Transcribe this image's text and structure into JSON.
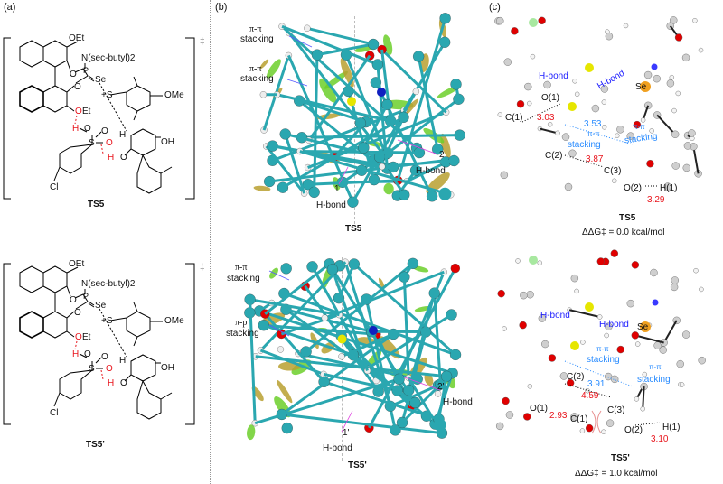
{
  "panels": {
    "a": {
      "label": "(a)",
      "ts_top": {
        "name": "TS5",
        "dagger": "‡",
        "atoms": {
          "oet_top": "OEt",
          "amine": "N(sec-butyl)2",
          "p": "P",
          "se": "Se",
          "o1": "O",
          "o2": "O",
          "s_plus": "+S",
          "ome": "OMe",
          "oet_bottom_o": "O",
          "oet_bottom_et": "Et",
          "h1": "H",
          "o3": "O",
          "s": "S",
          "so1": "O",
          "so2": "O",
          "h2": "H",
          "o4": "O",
          "h_ch": "H",
          "oh": "OH",
          "cl": "Cl"
        }
      },
      "ts_bottom": {
        "name": "TS5'",
        "dagger": "‡",
        "atoms": {
          "oet_top": "OEt",
          "amine": "N(sec-butyl)2",
          "p": "P",
          "se": "Se",
          "o1": "O",
          "o2": "O",
          "s_plus": "+S",
          "ome": "OMe",
          "oet_bottom_o": "O",
          "oet_bottom_et": "Et",
          "h1": "H",
          "o3": "O",
          "s": "S",
          "so1": "O",
          "so2": "O",
          "h2": "H",
          "o4": "O",
          "h_ch": "H",
          "oh": "OH",
          "cl": "Cl"
        }
      }
    },
    "b": {
      "label": "(b)",
      "top": {
        "name": "TS5",
        "stack1": "π-π\nstacking",
        "stack1_a": "π-π",
        "stack1_b": "stacking",
        "stack2_a": "π-π",
        "stack2_b": "stacking",
        "hb1_num": "1",
        "hb1_label": "H-bond",
        "hb2_num": "2",
        "hb2_label": "H-bond"
      },
      "bottom": {
        "name": "TS5'",
        "stack1_a": "π-π",
        "stack1_b": "stacking",
        "stack2_a": "π-p",
        "stack2_b": "stacking",
        "hb1_num": "1'",
        "hb1_label": "H-bond",
        "hb2_num": "2'",
        "hb2_label": "H-bond"
      }
    },
    "c": {
      "label": "(c)",
      "top": {
        "name": "TS5",
        "energy": "ΔΔG‡ = 0.0 kcal/mol",
        "hbond1": "H-bond",
        "hbond2": "H-bond",
        "se": "Se",
        "o1": "O(1)",
        "c1": "C(1)",
        "d_c1_o1": "3.03",
        "d_stack": "3.53",
        "pp1_a": "π-π",
        "pp1_b": "stacking",
        "pp2_a": "π-π",
        "pp2_b": "stacking",
        "c2": "C(2)",
        "d_c2_c3": "3.87",
        "c3": "C(3)",
        "o2": "O(2)",
        "h1": "H(1)",
        "d_o2_h1": "3.29"
      },
      "bottom": {
        "name": "TS5'",
        "energy": "ΔΔG‡ = 1.0 kcal/mol",
        "hbond1": "H-bond",
        "hbond2": "H-bond",
        "se": "Se",
        "pp1_a": "π-π",
        "pp1_b": "stacking",
        "pp2_a": "π-π",
        "pp2_b": "stacking",
        "c2": "C(2)",
        "d_stack": "3.91",
        "d_c2_c3": "4.59",
        "o1": "O(1)",
        "d_c1_o1": "2.93",
        "c1": "C(1)",
        "c3": "C(3)",
        "o2": "O(2)",
        "h1": "H(1)",
        "d_o2_h1": "3.10"
      }
    }
  },
  "colors": {
    "red_highlight": "#e8141c",
    "hbond_blue": "#1a1aff",
    "stacking_blue": "#2a8cff",
    "carbon_teal": "#2aa7b0",
    "sulfur": "#e6e600",
    "selenium": "#f0a020",
    "oxygen": "#e00000",
    "nitrogen": "#3a3aff",
    "nci_green": "#6ccf2a"
  }
}
